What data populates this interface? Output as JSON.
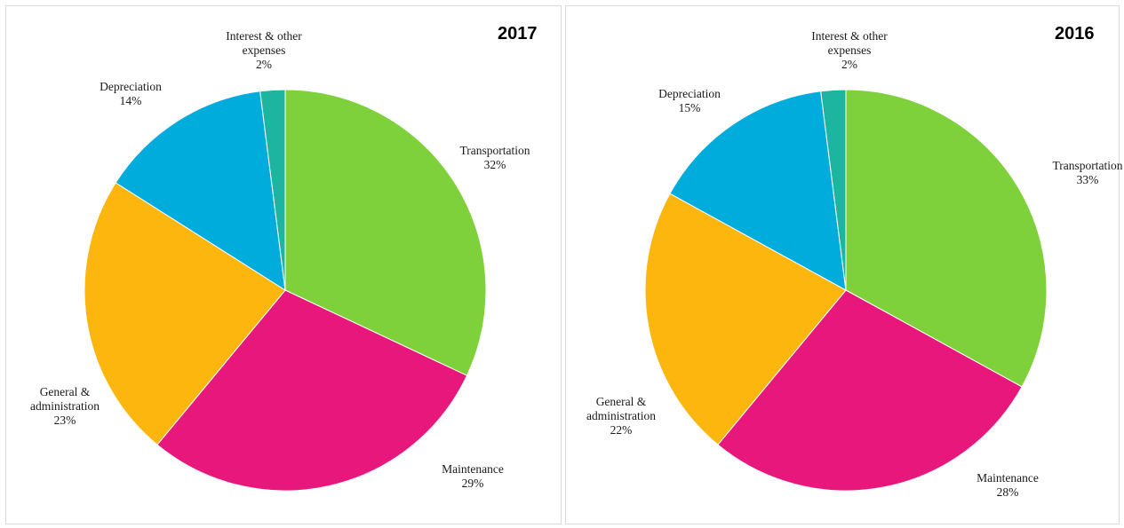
{
  "chart_data": [
    {
      "type": "pie",
      "title": "2017",
      "slices": [
        {
          "label_lines": [
            "Transportation"
          ],
          "value": 32,
          "pct": "32%",
          "color": "#7fd13b"
        },
        {
          "label_lines": [
            "Maintenance"
          ],
          "value": 29,
          "pct": "29%",
          "color": "#e8177c"
        },
        {
          "label_lines": [
            "General &",
            "administration"
          ],
          "value": 23,
          "pct": "23%",
          "color": "#fdb60d"
        },
        {
          "label_lines": [
            "Depreciation"
          ],
          "value": 14,
          "pct": "14%",
          "color": "#00acdc"
        },
        {
          "label_lines": [
            "Interest & other",
            "expenses"
          ],
          "value": 2,
          "pct": "2%",
          "color": "#1eb5a0"
        }
      ]
    },
    {
      "type": "pie",
      "title": "2016",
      "slices": [
        {
          "label_lines": [
            "Transportation"
          ],
          "value": 33,
          "pct": "33%",
          "color": "#7fd13b"
        },
        {
          "label_lines": [
            "Maintenance"
          ],
          "value": 28,
          "pct": "28%",
          "color": "#e8177c"
        },
        {
          "label_lines": [
            "General &",
            "administration"
          ],
          "value": 22,
          "pct": "22%",
          "color": "#fdb60d"
        },
        {
          "label_lines": [
            "Depreciation"
          ],
          "value": 15,
          "pct": "15%",
          "color": "#00acdc"
        },
        {
          "label_lines": [
            "Interest & other",
            "expenses"
          ],
          "value": 2,
          "pct": "2%",
          "color": "#1eb5a0"
        }
      ]
    }
  ]
}
